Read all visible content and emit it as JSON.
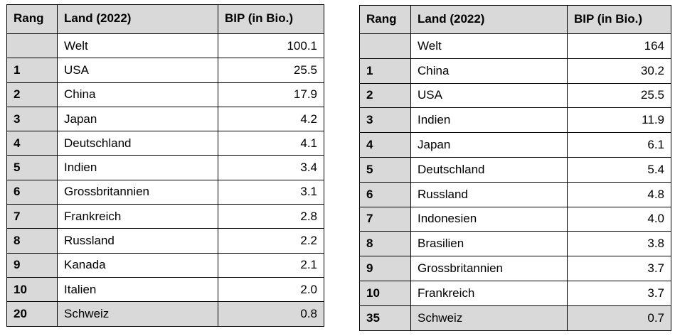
{
  "tables": [
    {
      "headers": {
        "rank": "Rang",
        "country": "Land (2022)",
        "value": "BIP (in Bio.)"
      },
      "rows": [
        {
          "rank": "",
          "country": "Welt",
          "value": "100.1"
        },
        {
          "rank": "1",
          "country": "USA",
          "value": "25.5"
        },
        {
          "rank": "2",
          "country": "China",
          "value": "17.9"
        },
        {
          "rank": "3",
          "country": "Japan",
          "value": "4.2"
        },
        {
          "rank": "4",
          "country": "Deutschland",
          "value": "4.1"
        },
        {
          "rank": "5",
          "country": "Indien",
          "value": "3.4"
        },
        {
          "rank": "6",
          "country": "Grossbritannien",
          "value": "3.1"
        },
        {
          "rank": "7",
          "country": "Frankreich",
          "value": "2.8"
        },
        {
          "rank": "8",
          "country": "Russland",
          "value": "2.2"
        },
        {
          "rank": "9",
          "country": "Kanada",
          "value": "2.1"
        },
        {
          "rank": "10",
          "country": "Italien",
          "value": "2.0"
        },
        {
          "rank": "20",
          "country": "Schweiz",
          "value": "0.8"
        }
      ]
    },
    {
      "headers": {
        "rank": "Rang",
        "country": "Land (2022)",
        "value": "BIP (in Bio.)"
      },
      "rows": [
        {
          "rank": "",
          "country": "Welt",
          "value": "164"
        },
        {
          "rank": "1",
          "country": "China",
          "value": "30.2"
        },
        {
          "rank": "2",
          "country": "USA",
          "value": "25.5"
        },
        {
          "rank": "3",
          "country": "Indien",
          "value": "11.9"
        },
        {
          "rank": "4",
          "country": "Japan",
          "value": "6.1"
        },
        {
          "rank": "5",
          "country": "Deutschland",
          "value": "5.4"
        },
        {
          "rank": "6",
          "country": "Russland",
          "value": "4.8"
        },
        {
          "rank": "7",
          "country": "Indonesien",
          "value": "4.0"
        },
        {
          "rank": "8",
          "country": "Brasilien",
          "value": "3.8"
        },
        {
          "rank": "9",
          "country": "Grossbritannien",
          "value": "3.7"
        },
        {
          "rank": "10",
          "country": "Frankreich",
          "value": "3.7"
        },
        {
          "rank": "35",
          "country": "Schweiz",
          "value": "0.7"
        }
      ]
    }
  ]
}
